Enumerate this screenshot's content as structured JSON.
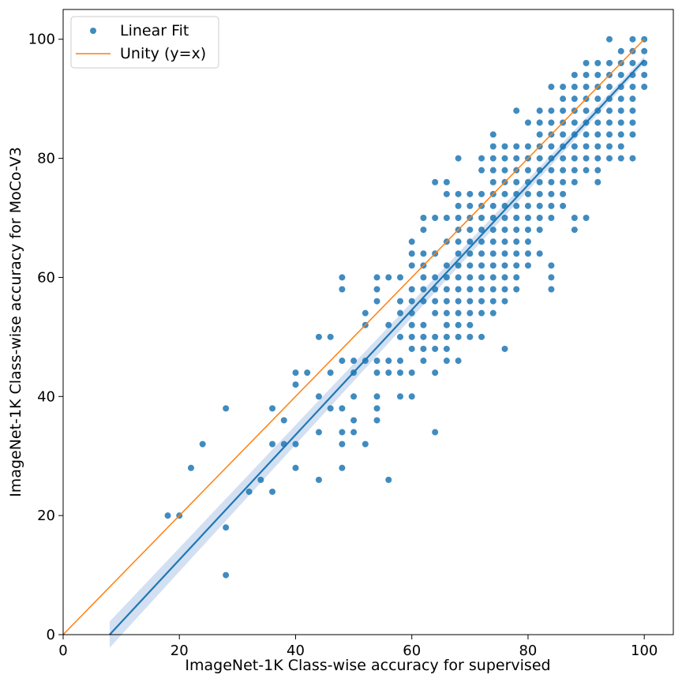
{
  "chart_data": {
    "type": "scatter",
    "xlabel": "ImageNet-1K Class-wise accuracy for supervised",
    "ylabel": "ImageNet-1K Class-wise accuracy for MoCo-V3",
    "xlim": [
      0,
      105
    ],
    "ylim": [
      0,
      105
    ],
    "x_ticks": [
      0,
      20,
      40,
      60,
      80,
      100
    ],
    "y_ticks": [
      0,
      20,
      40,
      60,
      80,
      100
    ],
    "grid": false,
    "legend_position": "top-left",
    "colors": {
      "points": "#1f77b4",
      "fit_line": "#1f77b4",
      "confidence_band": "#aec7e8",
      "unity_line": "#ff7f0e"
    },
    "series": [
      {
        "name": "Linear Fit",
        "kind": "scatter",
        "points": [
          [
            18,
            20
          ],
          [
            20,
            20
          ],
          [
            22,
            28
          ],
          [
            24,
            32
          ],
          [
            28,
            38
          ],
          [
            28,
            18
          ],
          [
            28,
            10
          ],
          [
            32,
            24
          ],
          [
            34,
            26
          ],
          [
            36,
            38
          ],
          [
            36,
            32
          ],
          [
            36,
            24
          ],
          [
            38,
            36
          ],
          [
            38,
            32
          ],
          [
            40,
            44
          ],
          [
            40,
            42
          ],
          [
            40,
            32
          ],
          [
            40,
            28
          ],
          [
            42,
            44
          ],
          [
            44,
            50
          ],
          [
            44,
            40
          ],
          [
            44,
            34
          ],
          [
            44,
            26
          ],
          [
            46,
            50
          ],
          [
            46,
            44
          ],
          [
            46,
            38
          ],
          [
            48,
            60
          ],
          [
            48,
            58
          ],
          [
            48,
            46
          ],
          [
            48,
            38
          ],
          [
            48,
            34
          ],
          [
            48,
            32
          ],
          [
            48,
            28
          ],
          [
            50,
            46
          ],
          [
            50,
            44
          ],
          [
            50,
            40
          ],
          [
            50,
            36
          ],
          [
            50,
            34
          ],
          [
            52,
            54
          ],
          [
            52,
            52
          ],
          [
            52,
            46
          ],
          [
            52,
            32
          ],
          [
            54,
            60
          ],
          [
            54,
            58
          ],
          [
            54,
            56
          ],
          [
            54,
            46
          ],
          [
            54,
            44
          ],
          [
            54,
            40
          ],
          [
            54,
            38
          ],
          [
            54,
            36
          ],
          [
            56,
            60
          ],
          [
            56,
            52
          ],
          [
            56,
            46
          ],
          [
            56,
            44
          ],
          [
            56,
            26
          ],
          [
            58,
            60
          ],
          [
            58,
            56
          ],
          [
            58,
            54
          ],
          [
            58,
            50
          ],
          [
            58,
            46
          ],
          [
            58,
            44
          ],
          [
            58,
            40
          ],
          [
            60,
            66
          ],
          [
            60,
            64
          ],
          [
            60,
            62
          ],
          [
            60,
            58
          ],
          [
            60,
            56
          ],
          [
            60,
            54
          ],
          [
            60,
            52
          ],
          [
            60,
            50
          ],
          [
            60,
            48
          ],
          [
            60,
            44
          ],
          [
            60,
            40
          ],
          [
            62,
            70
          ],
          [
            62,
            68
          ],
          [
            62,
            64
          ],
          [
            62,
            62
          ],
          [
            62,
            60
          ],
          [
            62,
            58
          ],
          [
            62,
            56
          ],
          [
            62,
            52
          ],
          [
            62,
            50
          ],
          [
            62,
            48
          ],
          [
            62,
            46
          ],
          [
            64,
            76
          ],
          [
            64,
            70
          ],
          [
            64,
            64
          ],
          [
            64,
            60
          ],
          [
            64,
            58
          ],
          [
            64,
            56
          ],
          [
            64,
            54
          ],
          [
            64,
            50
          ],
          [
            64,
            48
          ],
          [
            64,
            44
          ],
          [
            64,
            34
          ],
          [
            66,
            76
          ],
          [
            66,
            74
          ],
          [
            66,
            70
          ],
          [
            66,
            66
          ],
          [
            66,
            62
          ],
          [
            66,
            60
          ],
          [
            66,
            58
          ],
          [
            66,
            56
          ],
          [
            66,
            54
          ],
          [
            66,
            52
          ],
          [
            66,
            50
          ],
          [
            66,
            48
          ],
          [
            66,
            46
          ],
          [
            68,
            80
          ],
          [
            68,
            74
          ],
          [
            68,
            72
          ],
          [
            68,
            70
          ],
          [
            68,
            68
          ],
          [
            68,
            66
          ],
          [
            68,
            64
          ],
          [
            68,
            62
          ],
          [
            68,
            60
          ],
          [
            68,
            58
          ],
          [
            68,
            56
          ],
          [
            68,
            54
          ],
          [
            68,
            52
          ],
          [
            68,
            50
          ],
          [
            68,
            46
          ],
          [
            70,
            74
          ],
          [
            70,
            72
          ],
          [
            70,
            70
          ],
          [
            70,
            68
          ],
          [
            70,
            66
          ],
          [
            70,
            64
          ],
          [
            70,
            62
          ],
          [
            70,
            60
          ],
          [
            70,
            58
          ],
          [
            70,
            56
          ],
          [
            70,
            54
          ],
          [
            70,
            52
          ],
          [
            70,
            50
          ],
          [
            72,
            80
          ],
          [
            72,
            78
          ],
          [
            72,
            74
          ],
          [
            72,
            72
          ],
          [
            72,
            70
          ],
          [
            72,
            68
          ],
          [
            72,
            66
          ],
          [
            72,
            64
          ],
          [
            72,
            62
          ],
          [
            72,
            60
          ],
          [
            72,
            58
          ],
          [
            72,
            56
          ],
          [
            72,
            54
          ],
          [
            72,
            50
          ],
          [
            74,
            84
          ],
          [
            74,
            82
          ],
          [
            74,
            80
          ],
          [
            74,
            78
          ],
          [
            74,
            76
          ],
          [
            74,
            74
          ],
          [
            74,
            72
          ],
          [
            74,
            70
          ],
          [
            74,
            68
          ],
          [
            74,
            66
          ],
          [
            74,
            64
          ],
          [
            74,
            62
          ],
          [
            74,
            60
          ],
          [
            74,
            58
          ],
          [
            74,
            56
          ],
          [
            74,
            54
          ],
          [
            76,
            82
          ],
          [
            76,
            80
          ],
          [
            76,
            78
          ],
          [
            76,
            76
          ],
          [
            76,
            74
          ],
          [
            76,
            72
          ],
          [
            76,
            70
          ],
          [
            76,
            68
          ],
          [
            76,
            66
          ],
          [
            76,
            64
          ],
          [
            76,
            62
          ],
          [
            76,
            60
          ],
          [
            76,
            58
          ],
          [
            76,
            56
          ],
          [
            76,
            48
          ],
          [
            78,
            88
          ],
          [
            78,
            82
          ],
          [
            78,
            80
          ],
          [
            78,
            78
          ],
          [
            78,
            76
          ],
          [
            78,
            74
          ],
          [
            78,
            72
          ],
          [
            78,
            70
          ],
          [
            78,
            68
          ],
          [
            78,
            66
          ],
          [
            78,
            64
          ],
          [
            78,
            62
          ],
          [
            78,
            60
          ],
          [
            78,
            58
          ],
          [
            80,
            86
          ],
          [
            80,
            82
          ],
          [
            80,
            80
          ],
          [
            80,
            78
          ],
          [
            80,
            76
          ],
          [
            80,
            74
          ],
          [
            80,
            72
          ],
          [
            80,
            70
          ],
          [
            80,
            68
          ],
          [
            80,
            66
          ],
          [
            80,
            64
          ],
          [
            80,
            62
          ],
          [
            82,
            88
          ],
          [
            82,
            86
          ],
          [
            82,
            84
          ],
          [
            82,
            82
          ],
          [
            82,
            80
          ],
          [
            82,
            78
          ],
          [
            82,
            76
          ],
          [
            82,
            74
          ],
          [
            82,
            72
          ],
          [
            82,
            70
          ],
          [
            82,
            68
          ],
          [
            82,
            64
          ],
          [
            84,
            92
          ],
          [
            84,
            88
          ],
          [
            84,
            86
          ],
          [
            84,
            84
          ],
          [
            84,
            82
          ],
          [
            84,
            80
          ],
          [
            84,
            78
          ],
          [
            84,
            76
          ],
          [
            84,
            74
          ],
          [
            84,
            72
          ],
          [
            84,
            70
          ],
          [
            84,
            62
          ],
          [
            84,
            60
          ],
          [
            84,
            58
          ],
          [
            86,
            92
          ],
          [
            86,
            90
          ],
          [
            86,
            88
          ],
          [
            86,
            86
          ],
          [
            86,
            84
          ],
          [
            86,
            82
          ],
          [
            86,
            80
          ],
          [
            86,
            78
          ],
          [
            86,
            76
          ],
          [
            86,
            74
          ],
          [
            86,
            72
          ],
          [
            88,
            94
          ],
          [
            88,
            92
          ],
          [
            88,
            90
          ],
          [
            88,
            88
          ],
          [
            88,
            86
          ],
          [
            88,
            84
          ],
          [
            88,
            82
          ],
          [
            88,
            80
          ],
          [
            88,
            78
          ],
          [
            88,
            76
          ],
          [
            88,
            70
          ],
          [
            88,
            68
          ],
          [
            90,
            96
          ],
          [
            90,
            94
          ],
          [
            90,
            92
          ],
          [
            90,
            90
          ],
          [
            90,
            88
          ],
          [
            90,
            86
          ],
          [
            90,
            84
          ],
          [
            90,
            82
          ],
          [
            90,
            80
          ],
          [
            90,
            78
          ],
          [
            90,
            70
          ],
          [
            92,
            96
          ],
          [
            92,
            94
          ],
          [
            92,
            92
          ],
          [
            92,
            90
          ],
          [
            92,
            88
          ],
          [
            92,
            86
          ],
          [
            92,
            84
          ],
          [
            92,
            82
          ],
          [
            92,
            80
          ],
          [
            92,
            78
          ],
          [
            92,
            76
          ],
          [
            94,
            100
          ],
          [
            94,
            96
          ],
          [
            94,
            94
          ],
          [
            94,
            92
          ],
          [
            94,
            90
          ],
          [
            94,
            88
          ],
          [
            94,
            86
          ],
          [
            94,
            84
          ],
          [
            94,
            82
          ],
          [
            94,
            80
          ],
          [
            96,
            98
          ],
          [
            96,
            96
          ],
          [
            96,
            94
          ],
          [
            96,
            92
          ],
          [
            96,
            90
          ],
          [
            96,
            88
          ],
          [
            96,
            86
          ],
          [
            96,
            84
          ],
          [
            96,
            82
          ],
          [
            96,
            80
          ],
          [
            98,
            100
          ],
          [
            98,
            98
          ],
          [
            98,
            96
          ],
          [
            98,
            94
          ],
          [
            98,
            92
          ],
          [
            98,
            90
          ],
          [
            98,
            88
          ],
          [
            98,
            86
          ],
          [
            98,
            84
          ],
          [
            98,
            80
          ],
          [
            100,
            100
          ],
          [
            100,
            98
          ],
          [
            100,
            96
          ],
          [
            100,
            94
          ],
          [
            100,
            92
          ]
        ]
      },
      {
        "name": "Linear Fit",
        "kind": "regression_line",
        "x": [
          8,
          100
        ],
        "y": [
          0,
          96.5
        ],
        "band_halfwidth": [
          2.2,
          0.6
        ]
      },
      {
        "name": "Unity (y=x)",
        "kind": "line",
        "x": [
          0,
          100
        ],
        "y": [
          0,
          100
        ]
      }
    ],
    "legend": [
      {
        "label": "Linear Fit",
        "marker": "dot"
      },
      {
        "label": "Unity (y=x)",
        "marker": "line"
      }
    ]
  }
}
